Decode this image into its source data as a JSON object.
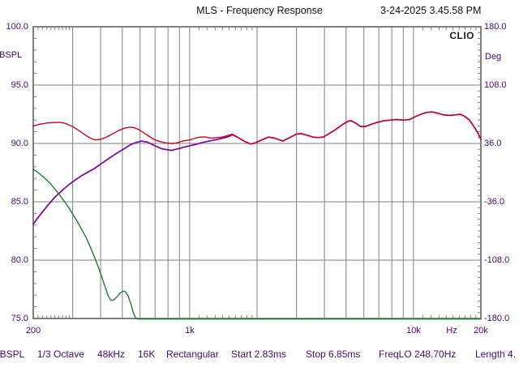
{
  "header": {
    "title": "MLS - Frequency Response",
    "datetime": "3-24-2025 3.45.58 PM"
  },
  "watermark": "CLIO",
  "statusbar": {
    "items": [
      "dBSPL",
      "1/3 Octave",
      "48kHz",
      "16K",
      "Rectangular",
      "Start 2.83ms",
      "Stop 6.85ms",
      "FreqLO 248.70Hz",
      "Length 4."
    ]
  },
  "colors": {
    "axis_text": "#440a70",
    "grid": "#808080",
    "frame": "#808080",
    "red_curve": "#cc0022",
    "purple_curve": "#7a00a0",
    "green_curve": "#1e7d32",
    "title_text": "#101010"
  },
  "chart_data": {
    "type": "line",
    "title": "MLS - Frequency Response",
    "x_axis": {
      "scale": "log",
      "min": 200,
      "max": 20000,
      "unit": "Hz",
      "tick_labels": [
        {
          "f": 200,
          "label": "200"
        },
        {
          "f": 1000,
          "label": "1k"
        },
        {
          "f": 10000,
          "label": "10k"
        },
        {
          "f": 20000,
          "label": "20k"
        }
      ],
      "gridlines": [
        300,
        400,
        500,
        600,
        700,
        800,
        900,
        1000,
        2000,
        3000,
        4000,
        5000,
        6000,
        7000,
        8000,
        9000,
        10000
      ]
    },
    "y_left": {
      "unit": "dBSPL",
      "min": 75,
      "max": 100,
      "ticks": [
        {
          "v": 100,
          "label": "100.0"
        },
        {
          "v": 95,
          "label": "95.0"
        },
        {
          "v": 90,
          "label": "90.0"
        },
        {
          "v": 85,
          "label": "85.0"
        },
        {
          "v": 80,
          "label": "80.0"
        },
        {
          "v": 75,
          "label": "75.0"
        }
      ]
    },
    "y_right": {
      "unit": "Deg",
      "min": -180,
      "max": 180,
      "ticks": [
        {
          "v": 180,
          "label": "180.0"
        },
        {
          "v": 108,
          "label": "108.0"
        },
        {
          "v": 36,
          "label": "36.0"
        },
        {
          "v": -36,
          "label": "-36.0"
        },
        {
          "v": -108,
          "label": "-108.0"
        },
        {
          "v": -180,
          "label": "-180.0"
        }
      ]
    },
    "grid": true,
    "legend": "none",
    "series": [
      {
        "name": "summed-response-red",
        "color": "#cc0022",
        "points": [
          [
            200,
            91.5
          ],
          [
            215,
            91.65
          ],
          [
            230,
            91.75
          ],
          [
            250,
            91.8
          ],
          [
            265,
            91.8
          ],
          [
            280,
            91.7
          ],
          [
            300,
            91.45
          ],
          [
            320,
            91.1
          ],
          [
            340,
            90.75
          ],
          [
            360,
            90.45
          ],
          [
            380,
            90.3
          ],
          [
            400,
            90.35
          ],
          [
            425,
            90.55
          ],
          [
            450,
            90.8
          ],
          [
            480,
            91.1
          ],
          [
            510,
            91.3
          ],
          [
            540,
            91.4
          ],
          [
            565,
            91.35
          ],
          [
            590,
            91.2
          ],
          [
            620,
            90.95
          ],
          [
            660,
            90.6
          ],
          [
            700,
            90.3
          ],
          [
            740,
            90.15
          ],
          [
            780,
            90.05
          ],
          [
            830,
            90.0
          ],
          [
            880,
            90.05
          ],
          [
            930,
            90.2
          ],
          [
            1000,
            90.3
          ],
          [
            1060,
            90.45
          ],
          [
            1120,
            90.55
          ],
          [
            1180,
            90.55
          ],
          [
            1250,
            90.45
          ],
          [
            1320,
            90.5
          ],
          [
            1400,
            90.55
          ],
          [
            1470,
            90.65
          ],
          [
            1550,
            90.8
          ],
          [
            1650,
            90.5
          ],
          [
            1750,
            90.2
          ],
          [
            1870,
            89.95
          ],
          [
            1960,
            90.05
          ],
          [
            2100,
            90.3
          ],
          [
            2250,
            90.55
          ],
          [
            2400,
            90.45
          ],
          [
            2600,
            90.2
          ],
          [
            2800,
            90.5
          ],
          [
            3000,
            90.8
          ],
          [
            3150,
            90.85
          ],
          [
            3350,
            90.7
          ],
          [
            3550,
            90.55
          ],
          [
            3750,
            90.5
          ],
          [
            3950,
            90.55
          ],
          [
            4200,
            90.85
          ],
          [
            4500,
            91.2
          ],
          [
            4800,
            91.6
          ],
          [
            5100,
            91.9
          ],
          [
            5250,
            91.95
          ],
          [
            5500,
            91.75
          ],
          [
            5800,
            91.45
          ],
          [
            6100,
            91.45
          ],
          [
            6500,
            91.65
          ],
          [
            7000,
            91.85
          ],
          [
            7400,
            91.95
          ],
          [
            7900,
            92.0
          ],
          [
            8400,
            92.05
          ],
          [
            9000,
            92.0
          ],
          [
            9600,
            92.05
          ],
          [
            10200,
            92.3
          ],
          [
            10800,
            92.5
          ],
          [
            11400,
            92.65
          ],
          [
            12100,
            92.7
          ],
          [
            12800,
            92.6
          ],
          [
            13600,
            92.45
          ],
          [
            14500,
            92.4
          ],
          [
            15400,
            92.45
          ],
          [
            16200,
            92.5
          ],
          [
            17000,
            92.3
          ],
          [
            17800,
            92.0
          ],
          [
            18700,
            91.4
          ],
          [
            19400,
            90.9
          ],
          [
            20000,
            90.35
          ]
        ]
      },
      {
        "name": "filtered-response-purple",
        "color": "#7a00a0",
        "points": [
          [
            200,
            83.1
          ],
          [
            215,
            83.9
          ],
          [
            230,
            84.6
          ],
          [
            250,
            85.4
          ],
          [
            270,
            86.0
          ],
          [
            290,
            86.5
          ],
          [
            310,
            86.9
          ],
          [
            330,
            87.25
          ],
          [
            355,
            87.6
          ],
          [
            375,
            87.85
          ],
          [
            395,
            88.15
          ],
          [
            420,
            88.5
          ],
          [
            450,
            88.9
          ],
          [
            480,
            89.25
          ],
          [
            510,
            89.55
          ],
          [
            545,
            89.9
          ],
          [
            580,
            90.1
          ],
          [
            610,
            90.2
          ],
          [
            650,
            90.1
          ],
          [
            700,
            89.8
          ],
          [
            750,
            89.55
          ],
          [
            800,
            89.45
          ],
          [
            830,
            89.4
          ],
          [
            870,
            89.5
          ],
          [
            910,
            89.6
          ],
          [
            950,
            89.7
          ],
          [
            1000,
            89.8
          ],
          [
            1080,
            89.95
          ],
          [
            1150,
            90.1
          ],
          [
            1220,
            90.2
          ],
          [
            1300,
            90.3
          ],
          [
            1400,
            90.45
          ],
          [
            1500,
            90.6
          ],
          [
            1550,
            90.75
          ],
          [
            1650,
            90.5
          ],
          [
            1750,
            90.2
          ],
          [
            1870,
            89.95
          ],
          [
            1960,
            90.05
          ],
          [
            2100,
            90.3
          ],
          [
            2250,
            90.55
          ],
          [
            2400,
            90.45
          ],
          [
            2600,
            90.2
          ],
          [
            2800,
            90.5
          ],
          [
            3000,
            90.8
          ],
          [
            3150,
            90.85
          ],
          [
            3350,
            90.7
          ],
          [
            3550,
            90.55
          ],
          [
            3750,
            90.5
          ],
          [
            3950,
            90.55
          ],
          [
            4200,
            90.85
          ],
          [
            4500,
            91.2
          ],
          [
            4800,
            91.6
          ],
          [
            5100,
            91.9
          ],
          [
            5250,
            91.95
          ],
          [
            5500,
            91.75
          ],
          [
            5800,
            91.45
          ],
          [
            6100,
            91.45
          ],
          [
            6500,
            91.65
          ],
          [
            7000,
            91.85
          ],
          [
            7400,
            91.95
          ],
          [
            7900,
            92.0
          ],
          [
            8400,
            92.05
          ],
          [
            9000,
            92.0
          ],
          [
            9600,
            92.05
          ],
          [
            10200,
            92.3
          ],
          [
            10800,
            92.5
          ],
          [
            11400,
            92.65
          ],
          [
            12100,
            92.7
          ],
          [
            12800,
            92.6
          ],
          [
            13600,
            92.45
          ],
          [
            14500,
            92.4
          ],
          [
            15400,
            92.45
          ],
          [
            16200,
            92.5
          ],
          [
            17000,
            92.3
          ],
          [
            17800,
            92.0
          ],
          [
            18700,
            91.4
          ],
          [
            19400,
            90.9
          ],
          [
            20000,
            90.35
          ]
        ]
      },
      {
        "name": "lowpass-response-green",
        "color": "#1e7d32",
        "points": [
          [
            200,
            87.8
          ],
          [
            210,
            87.5
          ],
          [
            220,
            87.2
          ],
          [
            230,
            86.85
          ],
          [
            240,
            86.5
          ],
          [
            250,
            86.1
          ],
          [
            262,
            85.6
          ],
          [
            275,
            85.05
          ],
          [
            288,
            84.5
          ],
          [
            300,
            83.95
          ],
          [
            315,
            83.3
          ],
          [
            330,
            82.6
          ],
          [
            345,
            81.9
          ],
          [
            360,
            81.1
          ],
          [
            375,
            80.3
          ],
          [
            390,
            79.45
          ],
          [
            405,
            78.55
          ],
          [
            420,
            77.65
          ],
          [
            432,
            76.95
          ],
          [
            443,
            76.6
          ],
          [
            452,
            76.55
          ],
          [
            462,
            76.65
          ],
          [
            475,
            76.9
          ],
          [
            490,
            77.2
          ],
          [
            505,
            77.35
          ],
          [
            515,
            77.3
          ],
          [
            530,
            76.95
          ],
          [
            545,
            76.3
          ],
          [
            558,
            75.6
          ],
          [
            572,
            75.05
          ],
          [
            590,
            74.95
          ],
          [
            700,
            74.95
          ],
          [
            1000,
            74.95
          ],
          [
            5000,
            74.95
          ],
          [
            20000,
            74.95
          ]
        ]
      }
    ]
  }
}
